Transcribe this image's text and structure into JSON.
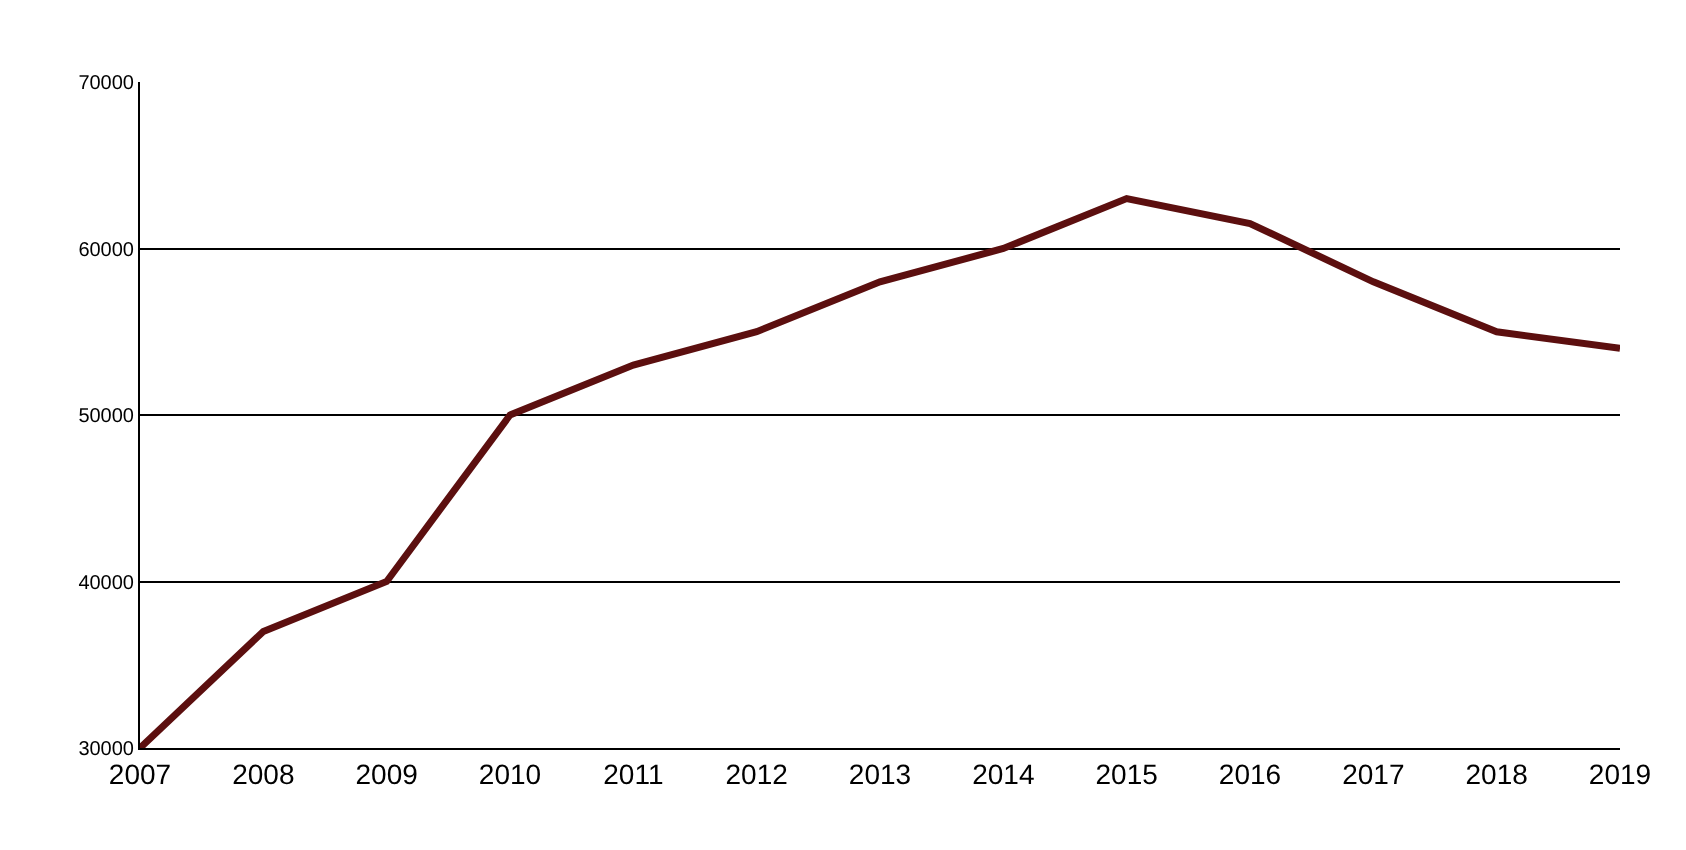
{
  "chart_data": {
    "type": "line",
    "categories": [
      "2007",
      "2008",
      "2009",
      "2010",
      "2011",
      "2012",
      "2013",
      "2014",
      "2015",
      "2016",
      "2017",
      "2018",
      "2019"
    ],
    "series": [
      {
        "color": "#5c0f0f",
        "values": [
          30000,
          37000,
          40000,
          50000,
          53000,
          55000,
          58000,
          60000,
          63000,
          61500,
          58000,
          55000,
          54000
        ]
      }
    ],
    "ylim": [
      30000,
      70000
    ],
    "yticks": [
      30000,
      40000,
      50000,
      60000,
      70000
    ],
    "grid": "y",
    "marker": "none",
    "line_style": "solid"
  }
}
